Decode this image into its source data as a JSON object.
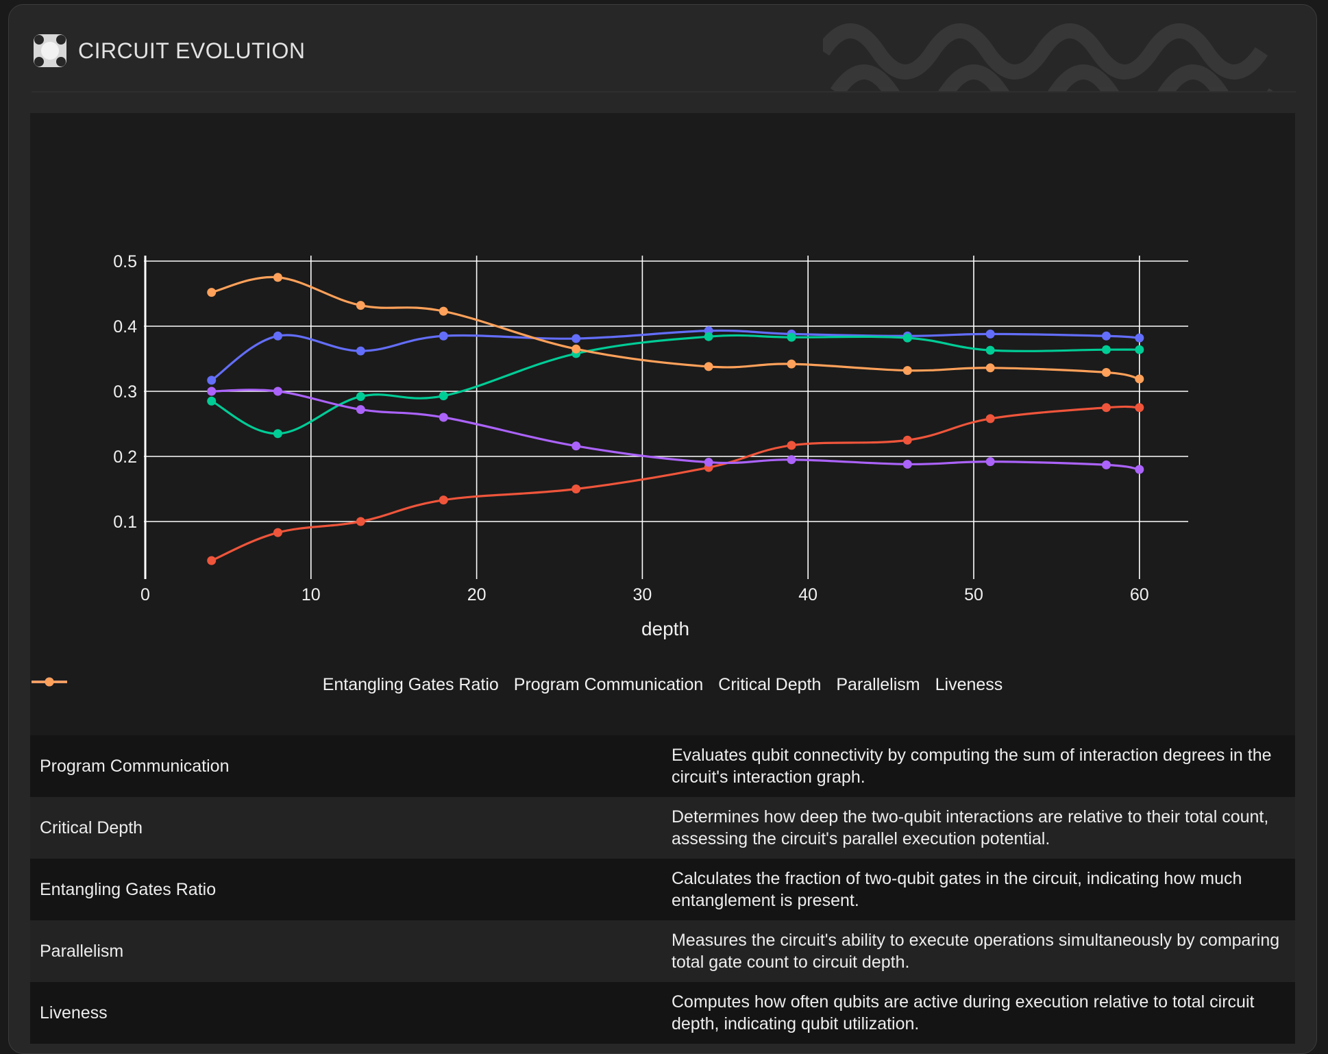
{
  "header": {
    "title": "CIRCUIT EVOLUTION",
    "logo_icon": "clover-logo-icon"
  },
  "chart_data": {
    "type": "line",
    "title": "",
    "xlabel": "depth",
    "ylabel": "",
    "xlim": [
      0,
      63
    ],
    "ylim": [
      0,
      0.5
    ],
    "x_ticks": [
      0,
      10,
      20,
      30,
      40,
      50,
      60
    ],
    "y_ticks": [
      0.1,
      0.2,
      0.3,
      0.4,
      0.5
    ],
    "x_tick_labels": [
      "0",
      "10",
      "20",
      "30",
      "40",
      "50",
      "60"
    ],
    "y_tick_labels": [
      "0.1",
      "0.2",
      "0.3",
      "0.4",
      "0.5"
    ],
    "grid": true,
    "legend_position": "bottom-center",
    "x": [
      4,
      8,
      13,
      18,
      26,
      34,
      39,
      46,
      51,
      58,
      60
    ],
    "series": [
      {
        "name": "Entangling Gates Ratio",
        "color": "#636efa",
        "values": [
          0.317,
          0.385,
          0.362,
          0.385,
          0.381,
          0.393,
          0.388,
          0.385,
          0.388,
          0.385,
          0.382
        ]
      },
      {
        "name": "Program Communication",
        "color": "#ef553b",
        "values": [
          0.04,
          0.083,
          0.1,
          0.133,
          0.15,
          0.183,
          0.217,
          0.225,
          0.258,
          0.275,
          0.275
        ]
      },
      {
        "name": "Critical Depth",
        "color": "#00cc96",
        "values": [
          0.285,
          0.235,
          0.292,
          0.293,
          0.358,
          0.384,
          0.383,
          0.382,
          0.363,
          0.364,
          0.364
        ]
      },
      {
        "name": "Parallelism",
        "color": "#ab63fa",
        "values": [
          0.3,
          0.3,
          0.272,
          0.26,
          0.216,
          0.191,
          0.195,
          0.188,
          0.192,
          0.187,
          0.18
        ]
      },
      {
        "name": "Liveness",
        "color": "#ffa15a",
        "values": [
          0.452,
          0.475,
          0.432,
          0.423,
          0.365,
          0.338,
          0.342,
          0.332,
          0.336,
          0.329,
          0.319
        ]
      }
    ]
  },
  "metrics": [
    {
      "name": "Program Communication",
      "description": "Evaluates qubit connectivity by computing the sum of interaction degrees in the circuit's interaction graph."
    },
    {
      "name": "Critical Depth",
      "description": "Determines how deep the two-qubit interactions are relative to their total count, assessing the circuit's parallel execution potential."
    },
    {
      "name": "Entangling Gates Ratio",
      "description": "Calculates the fraction of two-qubit gates in the circuit, indicating how much entanglement is present."
    },
    {
      "name": "Parallelism",
      "description": "Measures the circuit's ability to execute operations simultaneously by comparing total gate count to circuit depth."
    },
    {
      "name": "Liveness",
      "description": "Computes how often qubits are active during execution relative to total circuit depth, indicating qubit utilization."
    }
  ]
}
